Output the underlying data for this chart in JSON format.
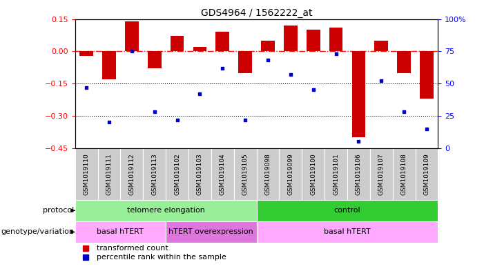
{
  "title": "GDS4964 / 1562222_at",
  "samples": [
    "GSM1019110",
    "GSM1019111",
    "GSM1019112",
    "GSM1019113",
    "GSM1019102",
    "GSM1019103",
    "GSM1019104",
    "GSM1019105",
    "GSM1019098",
    "GSM1019099",
    "GSM1019100",
    "GSM1019101",
    "GSM1019106",
    "GSM1019107",
    "GSM1019108",
    "GSM1019109"
  ],
  "red_values": [
    -0.02,
    -0.13,
    0.14,
    -0.08,
    0.07,
    0.02,
    0.09,
    -0.1,
    0.05,
    0.12,
    0.1,
    0.11,
    -0.4,
    0.05,
    -0.1,
    -0.22
  ],
  "blue_values": [
    47,
    20,
    75,
    28,
    22,
    42,
    62,
    22,
    68,
    57,
    45,
    73,
    5,
    52,
    28,
    15
  ],
  "ylim_left": [
    -0.45,
    0.15
  ],
  "ylim_right": [
    0,
    100
  ],
  "y_ticks_left": [
    0.15,
    0.0,
    -0.15,
    -0.3,
    -0.45
  ],
  "y_ticks_right": [
    100,
    75,
    50,
    25,
    0
  ],
  "hline_red": 0.0,
  "hline_dotted_1": -0.15,
  "hline_dotted_2": -0.3,
  "bar_color": "#cc0000",
  "dot_color": "#0000cc",
  "protocol_groups": [
    {
      "label": "telomere elongation",
      "start": 0,
      "end": 8,
      "color": "#99ee99"
    },
    {
      "label": "control",
      "start": 8,
      "end": 16,
      "color": "#33cc33"
    }
  ],
  "genotype_groups": [
    {
      "label": "basal hTERT",
      "start": 0,
      "end": 4,
      "color": "#ffaaff"
    },
    {
      "label": "hTERT overexpression",
      "start": 4,
      "end": 8,
      "color": "#dd77dd"
    },
    {
      "label": "basal hTERT",
      "start": 8,
      "end": 16,
      "color": "#ffaaff"
    }
  ],
  "protocol_label": "protocol",
  "genotype_label": "genotype/variation",
  "legend1": "transformed count",
  "legend2": "percentile rank within the sample",
  "bar_color_legend": "#cc0000",
  "dot_color_legend": "#0000cc"
}
